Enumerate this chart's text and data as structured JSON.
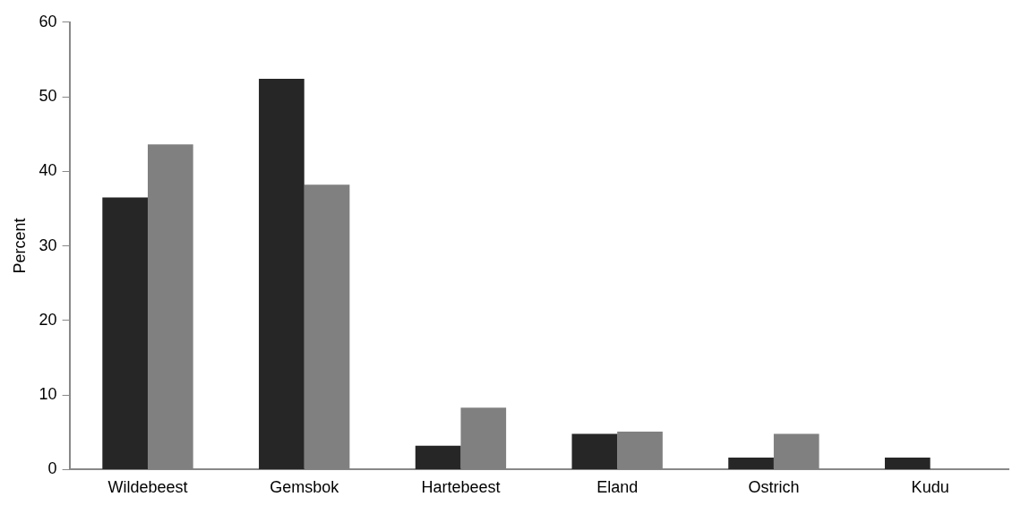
{
  "chart_data": {
    "type": "bar",
    "ylabel": "Percent",
    "categories": [
      "Wildebeest",
      "Gemsbok",
      "Hartebeest",
      "Eland",
      "Ostrich",
      "Kudu"
    ],
    "series": [
      {
        "color": "#262626",
        "values": [
          36.5,
          52.4,
          3.2,
          4.8,
          1.6,
          1.6
        ]
      },
      {
        "color": "#808080",
        "values": [
          43.6,
          38.2,
          8.3,
          5.1,
          4.8,
          0
        ]
      }
    ],
    "ylim": [
      0,
      60
    ],
    "yticks": [
      0,
      10,
      20,
      30,
      40,
      50,
      60
    ],
    "grid": false,
    "legend": false
  }
}
